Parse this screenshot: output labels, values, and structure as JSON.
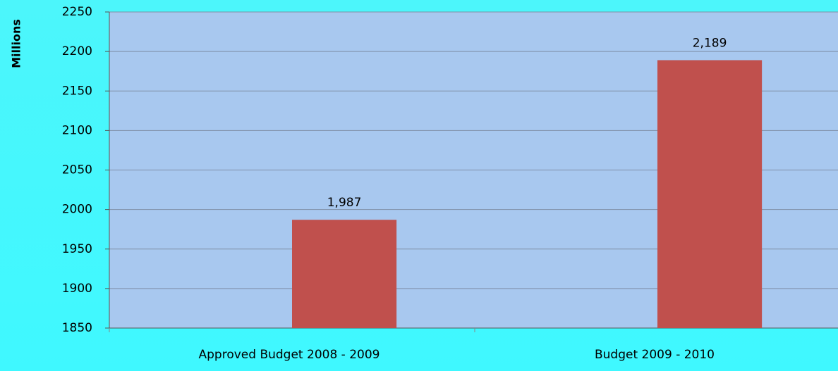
{
  "chart_data": {
    "type": "bar",
    "y_label": "Millions",
    "categories": [
      "Approved Budget 2008 - 2009",
      "Budget 2009 - 2010"
    ],
    "values": [
      1987,
      2189
    ],
    "value_labels": [
      "1,987",
      "2,189"
    ],
    "color": "#c0504d",
    "ylim": [
      1850,
      2250
    ],
    "yticks": [
      1850,
      1900,
      1950,
      2000,
      2050,
      2100,
      2150,
      2200,
      2250
    ],
    "grid": true
  }
}
